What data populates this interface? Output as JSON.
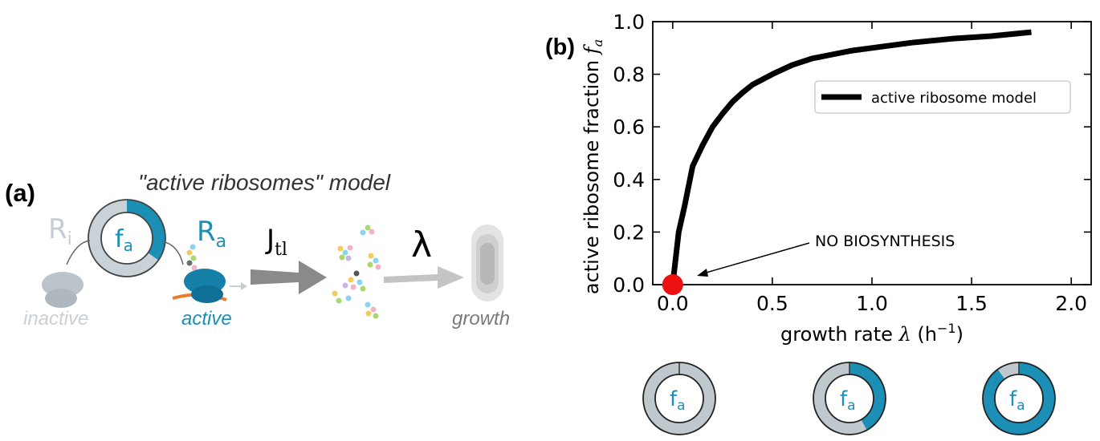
{
  "panel_a": {
    "label": "(a)",
    "title": "\"active ribosomes\" model",
    "inactive_symbol": "R",
    "inactive_sub": "i",
    "active_symbol": "R",
    "active_sub": "a",
    "fraction_symbol": "f",
    "fraction_sub": "a",
    "flux_symbol": "J",
    "flux_sub": "tl",
    "growth_symbol": "λ",
    "inactive_label": "inactive",
    "active_label": "active",
    "growth_label": "growth",
    "colors": {
      "active": "#1b8fb5",
      "inactive": "#bfc8cd",
      "arrow": "#8c8c8c"
    }
  },
  "panel_b": {
    "label": "(b)",
    "annotation": "NO BIOSYNTHESIS",
    "legend_label": "active ribosome model",
    "ring_symbol": "f",
    "ring_sub": "a",
    "rings": [
      {
        "active_fraction": 0.0
      },
      {
        "active_fraction": 0.42
      },
      {
        "active_fraction": 0.9
      }
    ]
  },
  "chart_data": {
    "type": "line",
    "xlabel_text": "growth rate ",
    "xlabel_symbol": "λ",
    "xlabel_unit": " (h",
    "xlabel_exp": "−1",
    "xlabel_close": ")",
    "ylabel": "active ribosome fraction ",
    "ylabel_symbol": "f",
    "ylabel_sub": "a",
    "xlim": [
      -0.1,
      2.1
    ],
    "ylim": [
      0,
      1.0
    ],
    "xticks": [
      0.0,
      0.5,
      1.0,
      1.5,
      2.0
    ],
    "xtick_labels": [
      "0.0",
      "0.5",
      "1.0",
      "1.5",
      "2.0"
    ],
    "yticks": [
      0.0,
      0.2,
      0.4,
      0.6,
      0.8,
      1.0
    ],
    "ytick_labels": [
      "0.0",
      "0.2",
      "0.4",
      "0.6",
      "0.8",
      "1.0"
    ],
    "series": [
      {
        "name": "active ribosome model",
        "color": "#000000",
        "x": [
          0.0,
          0.03,
          0.06,
          0.1,
          0.15,
          0.2,
          0.25,
          0.3,
          0.35,
          0.4,
          0.5,
          0.6,
          0.7,
          0.8,
          0.9,
          1.0,
          1.2,
          1.4,
          1.6,
          1.8
        ],
        "y": [
          0.0,
          0.2,
          0.3,
          0.45,
          0.53,
          0.6,
          0.65,
          0.695,
          0.73,
          0.76,
          0.8,
          0.835,
          0.86,
          0.875,
          0.89,
          0.9,
          0.92,
          0.935,
          0.945,
          0.96
        ]
      }
    ],
    "highlight_point": {
      "x": 0.0,
      "y": 0.0,
      "color": "#ee1111"
    },
    "grid": false,
    "legend_position": "upper-right"
  }
}
